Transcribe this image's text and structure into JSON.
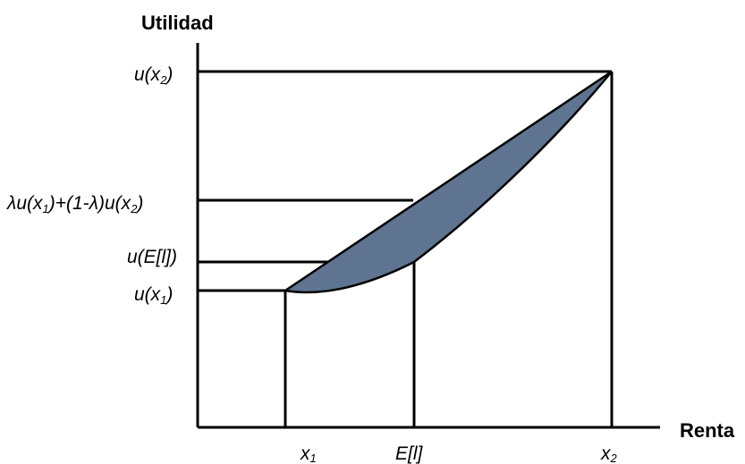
{
  "axes": {
    "y_title": "Utilidad",
    "x_title": "Renta"
  },
  "y_labels": {
    "u_x2": {
      "main": "u(x",
      "sub": "2",
      "end": ")"
    },
    "combo": {
      "p1": "λu(x",
      "s1": "1",
      "p2": ")+(1-λ)u(x",
      "s2": "2",
      "p3": ")"
    },
    "u_E": {
      "main": "u(E[l])"
    },
    "u_x1": {
      "main": "u(x",
      "sub": "1",
      "end": ")"
    }
  },
  "x_labels": {
    "x1": {
      "main": "x",
      "sub": "1"
    },
    "E": {
      "main": "E[l]"
    },
    "x2": {
      "main": "x",
      "sub": "2"
    }
  },
  "colors": {
    "region_fill": "#5E7490",
    "lines": "#000000",
    "background": "#ffffff"
  }
}
